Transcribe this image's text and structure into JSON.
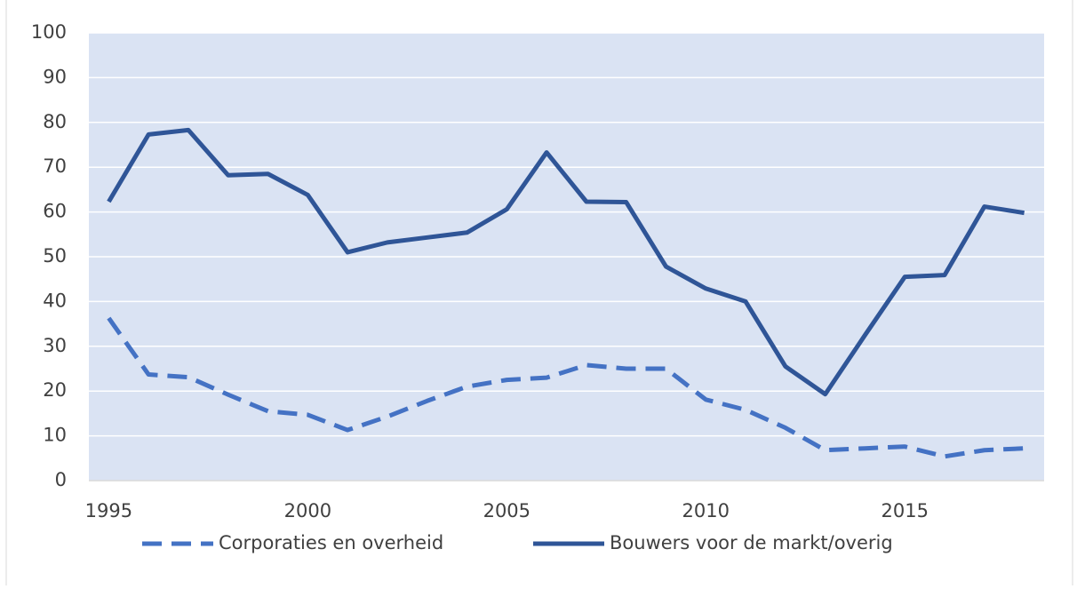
{
  "chart_data": {
    "type": "line",
    "x": [
      1995,
      1996,
      1997,
      1998,
      1999,
      2000,
      2001,
      2002,
      2003,
      2004,
      2005,
      2006,
      2007,
      2008,
      2009,
      2010,
      2011,
      2012,
      2013,
      2014,
      2015,
      2016,
      2017,
      2018
    ],
    "series": [
      {
        "name": "Corporaties en overheid",
        "color": "#4472c4",
        "dashed": true,
        "values": [
          36.3,
          23.7,
          23.1,
          19.2,
          15.5,
          14.7,
          11.3,
          14.3,
          17.8,
          21.0,
          22.5,
          23.0,
          25.8,
          25.0,
          25.0,
          18.1,
          15.8,
          11.8,
          6.8,
          7.2,
          7.6,
          5.4,
          6.8,
          7.2
        ]
      },
      {
        "name": "Bouwers voor de markt/overig",
        "color": "#2f5597",
        "dashed": false,
        "values": [
          62.3,
          77.3,
          78.3,
          68.2,
          68.5,
          63.8,
          51.0,
          53.2,
          54.3,
          55.4,
          60.6,
          73.3,
          62.3,
          62.2,
          47.8,
          42.9,
          40.0,
          25.5,
          19.3,
          32.5,
          45.5,
          45.9,
          61.2,
          59.8
        ]
      }
    ],
    "xlim": [
      1994.5,
      2018.5
    ],
    "xticks": [
      1995,
      2000,
      2005,
      2010,
      2015
    ],
    "ylim": [
      0,
      100
    ],
    "yticks": [
      0,
      10,
      20,
      30,
      40,
      50,
      60,
      70,
      80,
      90,
      100
    ],
    "grid": true,
    "legend": "bottom",
    "plot_background": "#dae3f3"
  }
}
